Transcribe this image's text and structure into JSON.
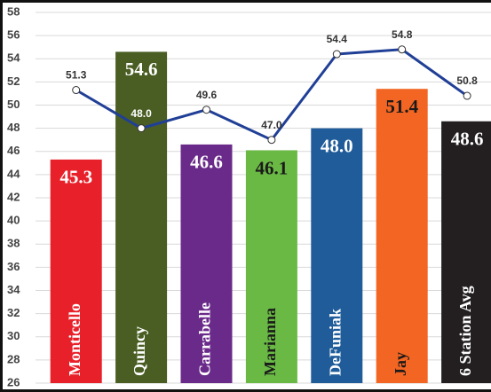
{
  "chart_data": {
    "type": "bar",
    "categories": [
      "Monticello",
      "Quincy",
      "Carrabelle",
      "Marianna",
      "DeFuniak",
      "Jay",
      "6 Station Avg"
    ],
    "series": [
      {
        "type": "bar",
        "colors": [
          "#e8202a",
          "#4a5e23",
          "#6a2a8a",
          "#6ab945",
          "#1f5c99",
          "#f26522",
          "#231f20"
        ],
        "values": [
          45.3,
          54.6,
          46.6,
          46.1,
          48.0,
          51.4,
          48.6
        ],
        "value_labels": [
          "45.3",
          "54.6",
          "46.6",
          "46.1",
          "48.0",
          "51.4",
          "48.6"
        ]
      },
      {
        "type": "line",
        "color": "#203f96",
        "values": [
          51.3,
          48.0,
          49.6,
          47.0,
          54.4,
          54.8,
          50.8
        ],
        "value_labels": [
          "51.3",
          "48.0",
          "49.6",
          "47.0",
          "54.4",
          "54.8",
          "50.8"
        ]
      }
    ],
    "ylim": [
      26,
      58
    ],
    "yticks": [
      26,
      28,
      30,
      32,
      34,
      36,
      38,
      40,
      42,
      44,
      46,
      48,
      50,
      52,
      54,
      56,
      58
    ],
    "grid": true
  }
}
